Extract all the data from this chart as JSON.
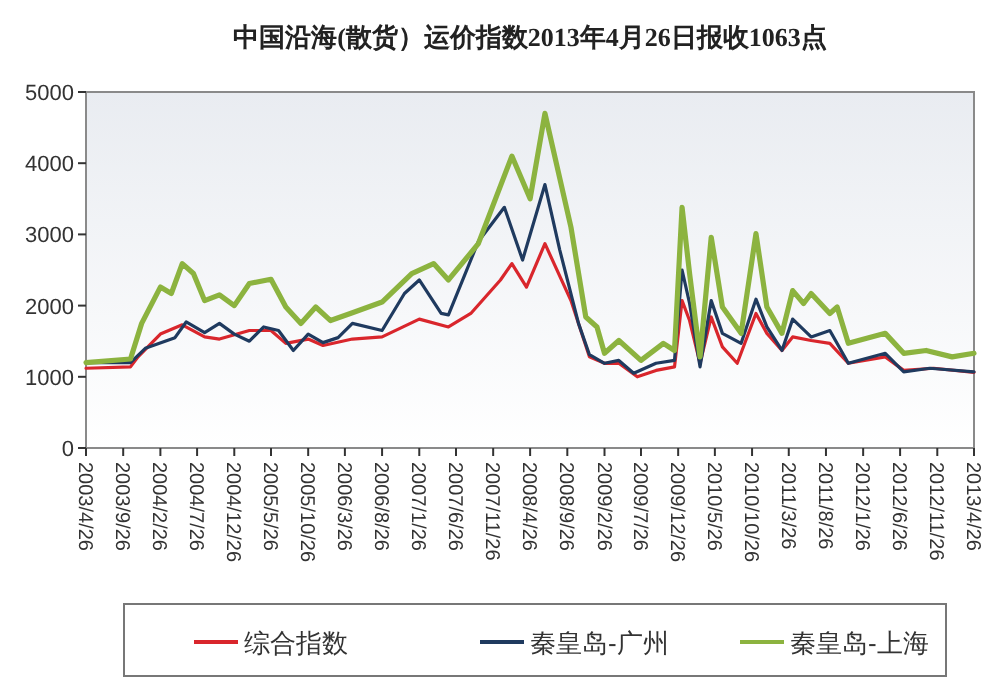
{
  "chart_data": {
    "type": "line",
    "title": "中国沿海(散货）运价指数2013年4月26日报收1063点",
    "xlim": [
      "2003-04-26",
      "2013-04-26"
    ],
    "xticks": [
      {
        "value": "2003-04-26",
        "label": "2003/4/26"
      },
      {
        "value": "2003-09-26",
        "label": "2003/9/26"
      },
      {
        "value": "2004-02-26",
        "label": "2004/2/26"
      },
      {
        "value": "2004-07-26",
        "label": "2004/7/26"
      },
      {
        "value": "2004-12-26",
        "label": "2004/12/26"
      },
      {
        "value": "2005-05-26",
        "label": "2005/5/26"
      },
      {
        "value": "2005-10-26",
        "label": "2005/10/26"
      },
      {
        "value": "2006-03-26",
        "label": "2006/3/26"
      },
      {
        "value": "2006-08-26",
        "label": "2006/8/26"
      },
      {
        "value": "2007-01-26",
        "label": "2007/1/26"
      },
      {
        "value": "2007-06-26",
        "label": "2007/6/26"
      },
      {
        "value": "2007-11-26",
        "label": "2007/11/26"
      },
      {
        "value": "2008-04-26",
        "label": "2008/4/26"
      },
      {
        "value": "2008-09-26",
        "label": "2008/9/26"
      },
      {
        "value": "2009-02-26",
        "label": "2009/2/26"
      },
      {
        "value": "2009-07-26",
        "label": "2009/7/26"
      },
      {
        "value": "2009-12-26",
        "label": "2009/12/26"
      },
      {
        "value": "2010-05-26",
        "label": "2010/5/26"
      },
      {
        "value": "2010-10-26",
        "label": "2010/10/26"
      },
      {
        "value": "2011-03-26",
        "label": "2011/3/26"
      },
      {
        "value": "2011-08-26",
        "label": "2011/8/26"
      },
      {
        "value": "2012-01-26",
        "label": "2012/1/26"
      },
      {
        "value": "2012-06-26",
        "label": "2012/6/26"
      },
      {
        "value": "2012-11-26",
        "label": "2012/11/26"
      },
      {
        "value": "2013-04-26",
        "label": "2013/4/26"
      }
    ],
    "ylim": [
      0,
      5000
    ],
    "yticks": [
      0,
      1000,
      2000,
      3000,
      4000,
      5000
    ],
    "legend": "bottom",
    "marker": "none",
    "line_style": "solid",
    "series": [
      {
        "name": "综合指数",
        "color": "#d9262c",
        "x": [
          "2003-04-26",
          "2003-10-26",
          "2003-11-26",
          "2004-02-26",
          "2004-05-26",
          "2004-08-26",
          "2004-10-26",
          "2005-02-26",
          "2005-05-26",
          "2005-07-26",
          "2005-10-26",
          "2005-12-26",
          "2006-04-26",
          "2006-08-26",
          "2007-01-26",
          "2007-05-26",
          "2007-08-26",
          "2007-12-26",
          "2008-02-11",
          "2008-04-11",
          "2008-06-26",
          "2008-10-11",
          "2008-12-26",
          "2009-02-26",
          "2009-04-26",
          "2009-07-11",
          "2009-09-26",
          "2009-12-11",
          "2010-01-11",
          "2010-02-11",
          "2010-03-26",
          "2010-05-11",
          "2010-06-26",
          "2010-08-26",
          "2010-11-11",
          "2010-12-26",
          "2011-02-26",
          "2011-04-11",
          "2011-06-26",
          "2011-09-11",
          "2011-11-26",
          "2012-04-26",
          "2012-07-11",
          "2012-11-11",
          "2013-04-26"
        ],
        "values": [
          1120,
          1140,
          1280,
          1600,
          1730,
          1560,
          1530,
          1650,
          1650,
          1470,
          1530,
          1440,
          1530,
          1560,
          1810,
          1700,
          1890,
          2360,
          2590,
          2260,
          2870,
          2070,
          1280,
          1190,
          1190,
          1000,
          1090,
          1140,
          2070,
          1790,
          1190,
          1840,
          1420,
          1190,
          1890,
          1610,
          1370,
          1560,
          1510,
          1470,
          1190,
          1280,
          1090,
          1120,
          1063
        ]
      },
      {
        "name": "秦皇岛-广州",
        "color": "#1f3a5f",
        "x": [
          "2003-04-26",
          "2003-10-26",
          "2003-12-26",
          "2004-04-26",
          "2004-06-11",
          "2004-08-26",
          "2004-10-26",
          "2004-12-26",
          "2005-02-26",
          "2005-04-26",
          "2005-06-26",
          "2005-08-26",
          "2005-10-26",
          "2005-12-26",
          "2006-02-26",
          "2006-04-26",
          "2006-08-26",
          "2006-11-26",
          "2007-01-26",
          "2007-04-26",
          "2007-05-26",
          "2007-09-26",
          "2008-01-11",
          "2008-03-26",
          "2008-06-26",
          "2008-08-26",
          "2008-11-11",
          "2008-12-26",
          "2009-02-26",
          "2009-04-26",
          "2009-06-26",
          "2009-09-26",
          "2009-12-11",
          "2010-01-11",
          "2010-02-11",
          "2010-03-26",
          "2010-05-11",
          "2010-06-26",
          "2010-09-11",
          "2010-11-11",
          "2010-12-26",
          "2011-02-26",
          "2011-04-11",
          "2011-06-26",
          "2011-09-11",
          "2011-11-26",
          "2012-04-26",
          "2012-07-11",
          "2012-10-26",
          "2013-04-26"
        ],
        "values": [
          1200,
          1200,
          1400,
          1550,
          1770,
          1620,
          1750,
          1600,
          1500,
          1700,
          1650,
          1370,
          1600,
          1480,
          1550,
          1750,
          1650,
          2170,
          2360,
          1890,
          1870,
          2900,
          3380,
          2640,
          3700,
          2780,
          1750,
          1310,
          1190,
          1230,
          1050,
          1190,
          1230,
          2500,
          2030,
          1140,
          2070,
          1610,
          1470,
          2090,
          1700,
          1370,
          1810,
          1560,
          1650,
          1190,
          1330,
          1070,
          1120,
          1070
        ]
      },
      {
        "name": "秦皇岛-上海",
        "color": "#8cb33f",
        "x": [
          "2003-04-26",
          "2003-10-26",
          "2003-12-11",
          "2004-02-26",
          "2004-04-11",
          "2004-05-26",
          "2004-07-11",
          "2004-08-26",
          "2004-10-26",
          "2004-12-26",
          "2005-02-26",
          "2005-05-26",
          "2005-07-26",
          "2005-09-26",
          "2005-11-26",
          "2006-01-26",
          "2006-04-26",
          "2006-08-26",
          "2006-12-26",
          "2007-03-26",
          "2007-05-26",
          "2007-09-26",
          "2008-02-11",
          "2008-04-26",
          "2008-06-26",
          "2008-10-11",
          "2008-12-11",
          "2009-01-26",
          "2009-02-26",
          "2009-04-26",
          "2009-07-26",
          "2009-10-26",
          "2009-12-11",
          "2010-01-11",
          "2010-02-11",
          "2010-03-26",
          "2010-05-11",
          "2010-06-26",
          "2010-09-11",
          "2010-11-11",
          "2010-12-26",
          "2011-02-26",
          "2011-04-11",
          "2011-05-26",
          "2011-06-26",
          "2011-09-11",
          "2011-10-11",
          "2011-11-26",
          "2012-04-26",
          "2012-07-11",
          "2012-10-11",
          "2013-01-26",
          "2013-04-26"
        ],
        "values": [
          1200,
          1250,
          1750,
          2260,
          2170,
          2590,
          2450,
          2070,
          2150,
          2000,
          2310,
          2370,
          1980,
          1750,
          1980,
          1790,
          1900,
          2050,
          2450,
          2590,
          2360,
          2870,
          4100,
          3500,
          4700,
          3100,
          1840,
          1700,
          1330,
          1510,
          1230,
          1470,
          1370,
          3380,
          2450,
          1280,
          2960,
          1980,
          1610,
          3010,
          1980,
          1610,
          2210,
          2030,
          2170,
          1890,
          1980,
          1470,
          1610,
          1330,
          1370,
          1280,
          1330
        ]
      }
    ]
  }
}
